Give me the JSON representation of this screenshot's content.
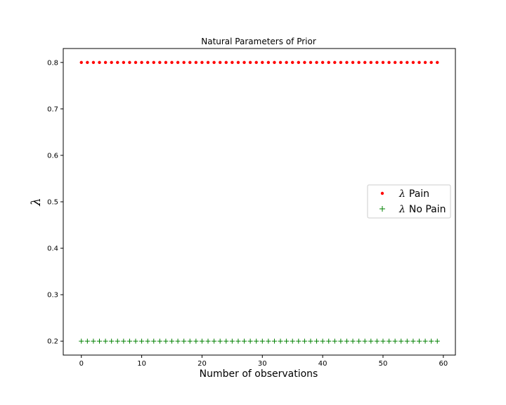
{
  "chart_data": {
    "type": "scatter",
    "title": "Natural Parameters of Prior",
    "xlabel": "Number of observations",
    "ylabel": "λ",
    "xlim": [
      -3,
      62
    ],
    "ylim": [
      0.17,
      0.83
    ],
    "xticks": [
      0,
      10,
      20,
      30,
      40,
      50,
      60
    ],
    "yticks": [
      0.2,
      0.3,
      0.4,
      0.5,
      0.6,
      0.7,
      0.8
    ],
    "grid": false,
    "legend_position": "center-right",
    "x": [
      0,
      1,
      2,
      3,
      4,
      5,
      6,
      7,
      8,
      9,
      10,
      11,
      12,
      13,
      14,
      15,
      16,
      17,
      18,
      19,
      20,
      21,
      22,
      23,
      24,
      25,
      26,
      27,
      28,
      29,
      30,
      31,
      32,
      33,
      34,
      35,
      36,
      37,
      38,
      39,
      40,
      41,
      42,
      43,
      44,
      45,
      46,
      47,
      48,
      49,
      50,
      51,
      52,
      53,
      54,
      55,
      56,
      57,
      58,
      59
    ],
    "series": [
      {
        "name": "λ Pain",
        "legend_symbol": "λ",
        "legend_text": "Pain",
        "color": "#ff0000",
        "marker": "dot",
        "values": [
          0.8,
          0.8,
          0.8,
          0.8,
          0.8,
          0.8,
          0.8,
          0.8,
          0.8,
          0.8,
          0.8,
          0.8,
          0.8,
          0.8,
          0.8,
          0.8,
          0.8,
          0.8,
          0.8,
          0.8,
          0.8,
          0.8,
          0.8,
          0.8,
          0.8,
          0.8,
          0.8,
          0.8,
          0.8,
          0.8,
          0.8,
          0.8,
          0.8,
          0.8,
          0.8,
          0.8,
          0.8,
          0.8,
          0.8,
          0.8,
          0.8,
          0.8,
          0.8,
          0.8,
          0.8,
          0.8,
          0.8,
          0.8,
          0.8,
          0.8,
          0.8,
          0.8,
          0.8,
          0.8,
          0.8,
          0.8,
          0.8,
          0.8,
          0.8,
          0.8
        ]
      },
      {
        "name": "λ No Pain",
        "legend_symbol": "λ",
        "legend_text": "No Pain",
        "color": "#008000",
        "marker": "plus",
        "values": [
          0.2,
          0.2,
          0.2,
          0.2,
          0.2,
          0.2,
          0.2,
          0.2,
          0.2,
          0.2,
          0.2,
          0.2,
          0.2,
          0.2,
          0.2,
          0.2,
          0.2,
          0.2,
          0.2,
          0.2,
          0.2,
          0.2,
          0.2,
          0.2,
          0.2,
          0.2,
          0.2,
          0.2,
          0.2,
          0.2,
          0.2,
          0.2,
          0.2,
          0.2,
          0.2,
          0.2,
          0.2,
          0.2,
          0.2,
          0.2,
          0.2,
          0.2,
          0.2,
          0.2,
          0.2,
          0.2,
          0.2,
          0.2,
          0.2,
          0.2,
          0.2,
          0.2,
          0.2,
          0.2,
          0.2,
          0.2,
          0.2,
          0.2,
          0.2,
          0.2
        ]
      }
    ]
  }
}
